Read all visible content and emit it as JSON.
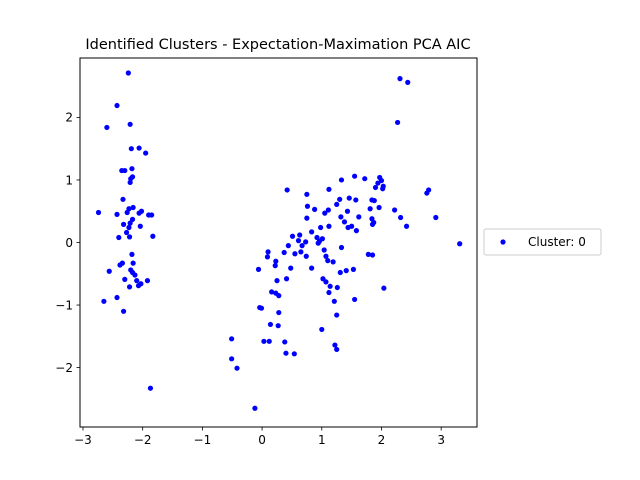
{
  "chart_data": {
    "type": "scatter",
    "title": "Identified Clusters - Expectation-Maximation PCA AIC",
    "xlabel": "",
    "ylabel": "",
    "xlim": [
      -3.05,
      3.6
    ],
    "ylim": [
      -2.95,
      2.95
    ],
    "x_ticks": [
      -3,
      -2,
      -1,
      0,
      1,
      2,
      3
    ],
    "y_ticks": [
      -2,
      -1,
      0,
      1,
      2
    ],
    "x_tick_labels": [
      "−3",
      "−2",
      "−1",
      "0",
      "1",
      "2",
      "3"
    ],
    "y_tick_labels": [
      "−2",
      "−1",
      "0",
      "1",
      "2"
    ],
    "grid": false,
    "legend_position": "outside-right",
    "series": [
      {
        "name": "Cluster: 0",
        "color": "#0000ff",
        "marker": "circle",
        "points": [
          [
            -2.24,
            2.71
          ],
          [
            -2.43,
            2.19
          ],
          [
            -2.6,
            1.84
          ],
          [
            -2.21,
            1.89
          ],
          [
            -2.06,
            1.51
          ],
          [
            -2.19,
            1.5
          ],
          [
            -1.95,
            1.43
          ],
          [
            -2.35,
            1.15
          ],
          [
            -2.3,
            1.15
          ],
          [
            -2.18,
            1.18
          ],
          [
            -2.17,
            1.05
          ],
          [
            -2.2,
            1.02
          ],
          [
            -2.21,
            0.96
          ],
          [
            -2.33,
            0.69
          ],
          [
            -2.16,
            0.56
          ],
          [
            -2.23,
            0.54
          ],
          [
            -2.26,
            0.48
          ],
          [
            -2.02,
            0.5
          ],
          [
            -2.06,
            0.47
          ],
          [
            -1.9,
            0.44
          ],
          [
            -1.85,
            0.44
          ],
          [
            -2.74,
            0.48
          ],
          [
            -2.43,
            0.45
          ],
          [
            -2.17,
            0.37
          ],
          [
            -2.21,
            0.31
          ],
          [
            -2.32,
            0.29
          ],
          [
            -2.23,
            0.24
          ],
          [
            -2.04,
            0.26
          ],
          [
            -2.27,
            0.16
          ],
          [
            -2.4,
            0.08
          ],
          [
            -2.22,
            0.09
          ],
          [
            -1.83,
            0.1
          ],
          [
            -2.18,
            -0.19
          ],
          [
            -2.34,
            -0.33
          ],
          [
            -2.38,
            -0.36
          ],
          [
            -2.16,
            -0.33
          ],
          [
            -2.56,
            -0.46
          ],
          [
            -2.2,
            -0.44
          ],
          [
            -2.17,
            -0.48
          ],
          [
            -2.13,
            -0.52
          ],
          [
            -2.3,
            -0.59
          ],
          [
            -2.1,
            -0.61
          ],
          [
            -1.92,
            -0.61
          ],
          [
            -2.03,
            -0.66
          ],
          [
            -2.07,
            -0.69
          ],
          [
            -2.22,
            -0.71
          ],
          [
            -2.43,
            -0.88
          ],
          [
            -2.65,
            -0.94
          ],
          [
            -2.32,
            -1.1
          ],
          [
            -1.87,
            -2.33
          ],
          [
            2.31,
            2.62
          ],
          [
            2.44,
            2.56
          ],
          [
            2.27,
            1.92
          ],
          [
            1.55,
            1.06
          ],
          [
            1.72,
            1.02
          ],
          [
            1.97,
            1.04
          ],
          [
            2.0,
            0.99
          ],
          [
            1.33,
            1.0
          ],
          [
            1.94,
            0.95
          ],
          [
            2.03,
            0.9
          ],
          [
            2.02,
            0.86
          ],
          [
            1.9,
            0.88
          ],
          [
            1.12,
            0.85
          ],
          [
            0.42,
            0.84
          ],
          [
            2.79,
            0.84
          ],
          [
            2.76,
            0.79
          ],
          [
            0.75,
            0.77
          ],
          [
            1.46,
            0.71
          ],
          [
            1.3,
            0.69
          ],
          [
            1.57,
            0.68
          ],
          [
            1.84,
            0.68
          ],
          [
            1.88,
            0.67
          ],
          [
            1.25,
            0.61
          ],
          [
            0.76,
            0.58
          ],
          [
            1.96,
            0.56
          ],
          [
            1.81,
            0.54
          ],
          [
            0.88,
            0.53
          ],
          [
            1.11,
            0.52
          ],
          [
            2.22,
            0.52
          ],
          [
            1.43,
            0.5
          ],
          [
            1.05,
            0.47
          ],
          [
            1.32,
            0.41
          ],
          [
            1.62,
            0.41
          ],
          [
            2.32,
            0.4
          ],
          [
            0.75,
            0.39
          ],
          [
            1.84,
            0.38
          ],
          [
            2.91,
            0.4
          ],
          [
            1.38,
            0.33
          ],
          [
            1.87,
            0.32
          ],
          [
            1.85,
            0.29
          ],
          [
            1.5,
            0.26
          ],
          [
            1.12,
            0.26
          ],
          [
            1.44,
            0.24
          ],
          [
            0.98,
            0.24
          ],
          [
            2.42,
            0.26
          ],
          [
            1.58,
            0.19
          ],
          [
            0.83,
            0.17
          ],
          [
            0.63,
            0.12
          ],
          [
            0.51,
            0.1
          ],
          [
            0.92,
            0.08
          ],
          [
            1.01,
            0.06
          ],
          [
            0.61,
            0.03
          ],
          [
            0.96,
            0.02
          ],
          [
            0.73,
            0.01
          ],
          [
            0.94,
            -0.01
          ],
          [
            0.44,
            -0.05
          ],
          [
            0.67,
            -0.05
          ],
          [
            1.33,
            -0.08
          ],
          [
            1.04,
            -0.12
          ],
          [
            0.65,
            -0.15
          ],
          [
            0.1,
            -0.15
          ],
          [
            0.37,
            -0.16
          ],
          [
            0.55,
            -0.18
          ],
          [
            0.09,
            -0.23
          ],
          [
            1.07,
            -0.22
          ],
          [
            0.74,
            -0.22
          ],
          [
            1.1,
            -0.29
          ],
          [
            0.23,
            -0.3
          ],
          [
            1.19,
            -0.31
          ],
          [
            1.78,
            -0.19
          ],
          [
            1.85,
            -0.2
          ],
          [
            0.22,
            -0.37
          ],
          [
            0.48,
            -0.41
          ],
          [
            1.53,
            -0.43
          ],
          [
            1.41,
            -0.45
          ],
          [
            1.31,
            -0.48
          ],
          [
            -0.06,
            -0.43
          ],
          [
            0.83,
            -0.41
          ],
          [
            1.02,
            -0.58
          ],
          [
            0.25,
            -0.61
          ],
          [
            0.41,
            -0.58
          ],
          [
            1.07,
            -0.63
          ],
          [
            1.14,
            -0.7
          ],
          [
            1.26,
            -0.72
          ],
          [
            2.04,
            -0.73
          ],
          [
            0.23,
            -0.81
          ],
          [
            0.16,
            -0.79
          ],
          [
            1.12,
            -0.8
          ],
          [
            0.28,
            -0.85
          ],
          [
            1.55,
            -0.91
          ],
          [
            1.21,
            -0.94
          ],
          [
            -0.04,
            -1.04
          ],
          [
            -0.01,
            -1.05
          ],
          [
            0.28,
            -1.12
          ],
          [
            1.25,
            -1.16
          ],
          [
            0.14,
            -1.31
          ],
          [
            0.27,
            -1.33
          ],
          [
            1.0,
            -1.39
          ],
          [
            -0.51,
            -1.54
          ],
          [
            0.03,
            -1.58
          ],
          [
            0.12,
            -1.58
          ],
          [
            0.38,
            -1.59
          ],
          [
            1.22,
            -1.64
          ],
          [
            1.25,
            -1.71
          ],
          [
            0.4,
            -1.77
          ],
          [
            0.54,
            -1.78
          ],
          [
            -0.51,
            -1.86
          ],
          [
            -0.42,
            -2.01
          ],
          [
            -0.12,
            -2.65
          ],
          [
            3.31,
            -0.02
          ]
        ]
      }
    ]
  }
}
